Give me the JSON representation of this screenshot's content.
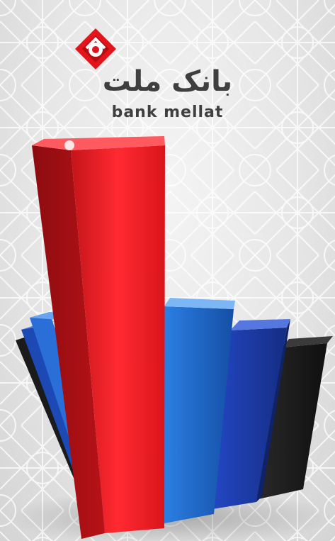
{
  "splash": {
    "brand_name_fa": "بانک ملت",
    "brand_name_en": "bank mellat",
    "logo_icon": "bank-mellat-emblem-icon"
  },
  "colors": {
    "brand_red": "#e3141b",
    "brand_dark": "#3f3f3f",
    "bar_red": "#e21b22",
    "bar_blue": "#1e62c6",
    "bar_navy": "#1a3aa0",
    "bar_black": "#1b1b1b"
  },
  "illustration": {
    "name": "decorative-3d-bar-graphic",
    "bars": [
      "red",
      "blue",
      "navy",
      "black"
    ]
  }
}
